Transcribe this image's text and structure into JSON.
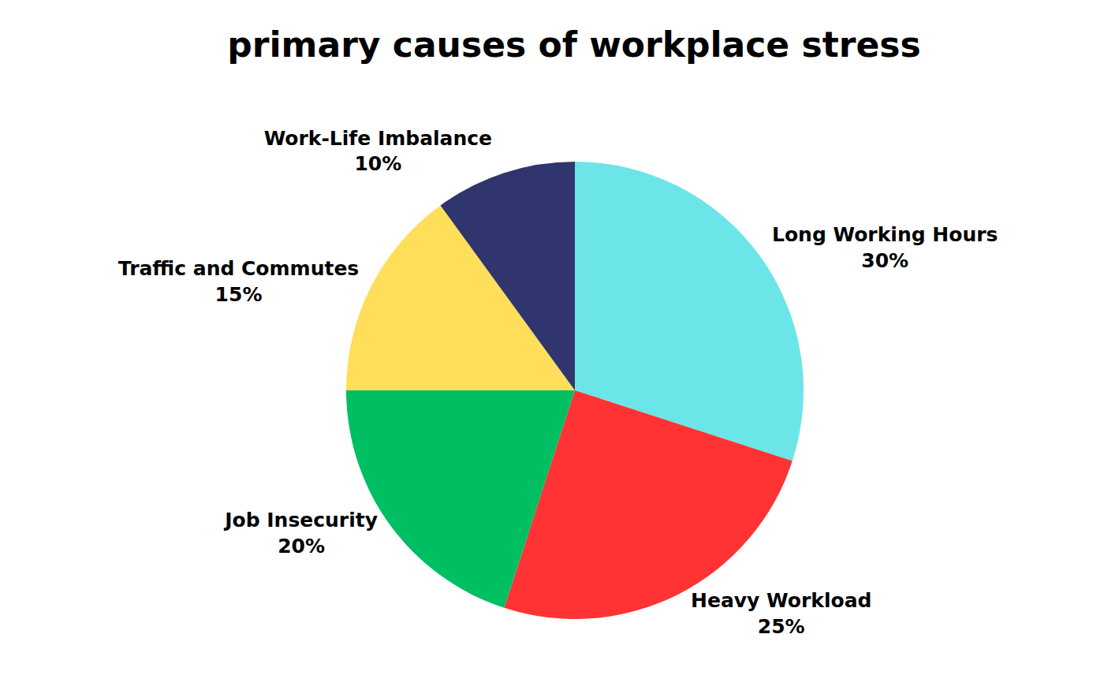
{
  "chart_data": {
    "type": "pie",
    "title": "primary causes of workplace stress",
    "categories": [
      "Long Working Hours",
      "Heavy Workload",
      "Job Insecurity",
      "Traffic and Commutes",
      "Work-Life Imbalance"
    ],
    "values": [
      30,
      25,
      20,
      15,
      10
    ],
    "value_labels": [
      "30%",
      "25%",
      "20%",
      "15%",
      "10%"
    ],
    "colors": [
      "#6ce5e8",
      "#ff3333",
      "#00bf63",
      "#ffde59",
      "#31356e"
    ],
    "data_labels": true
  }
}
